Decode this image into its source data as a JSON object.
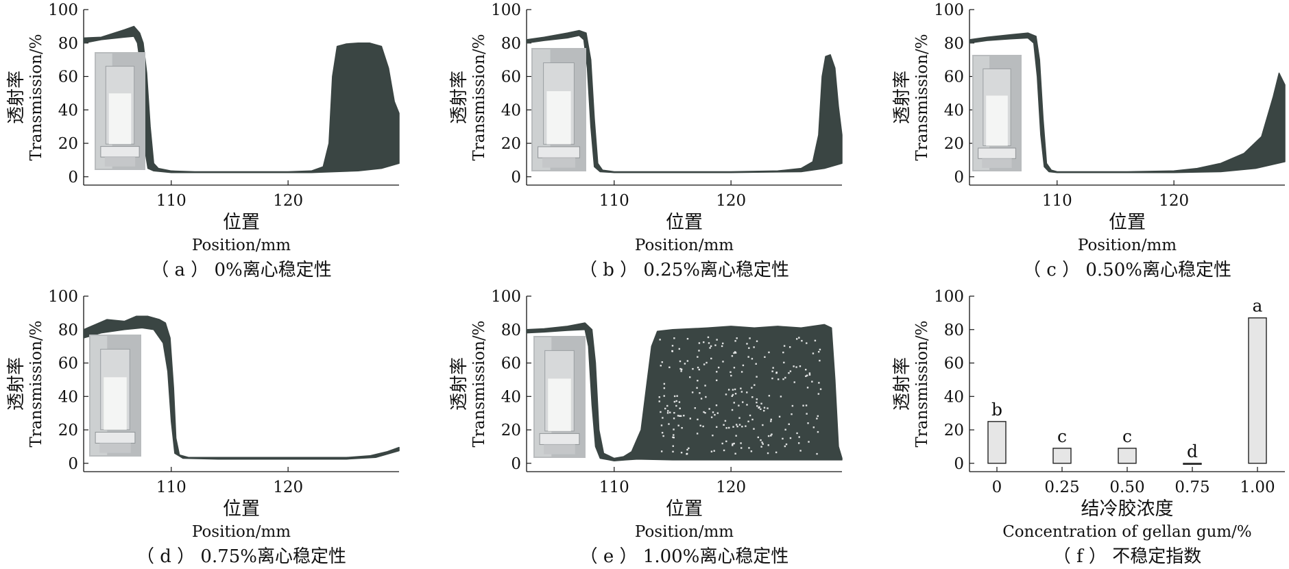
{
  "chart_data": [
    {
      "id": "a",
      "type": "area",
      "caption": "（ a ） 0%离心稳定性",
      "ylabel_cn": "透射率",
      "ylabel_en": "Transmission/%",
      "xlabel_cn": "位置",
      "xlabel_en": "Position/mm",
      "xlim": [
        102.5,
        129.5
      ],
      "ylim": [
        -5,
        100
      ],
      "xticks": [
        "110",
        "120"
      ],
      "yticks": [
        "0",
        "20",
        "40",
        "60",
        "80",
        "100"
      ],
      "color": "#3a4543",
      "upper": [
        [
          102.5,
          83
        ],
        [
          104,
          83.5
        ],
        [
          106,
          88
        ],
        [
          106.8,
          90
        ],
        [
          107.3,
          86
        ],
        [
          107.6,
          80
        ],
        [
          107.9,
          62
        ],
        [
          108.2,
          30
        ],
        [
          108.5,
          8
        ],
        [
          108.9,
          5
        ],
        [
          110,
          3.5
        ],
        [
          112,
          3
        ],
        [
          120,
          3
        ],
        [
          122,
          3.5
        ],
        [
          123,
          6
        ],
        [
          123.5,
          20
        ],
        [
          123.8,
          60
        ],
        [
          124.2,
          78
        ],
        [
          125,
          79.5
        ],
        [
          126,
          80
        ],
        [
          127,
          80
        ],
        [
          128,
          78
        ],
        [
          128.6,
          65
        ],
        [
          129.1,
          45
        ],
        [
          129.5,
          38
        ]
      ],
      "lower": [
        [
          102.5,
          80
        ],
        [
          104,
          82
        ],
        [
          106,
          83.5
        ],
        [
          106.8,
          84
        ],
        [
          107.1,
          80
        ],
        [
          107.3,
          70
        ],
        [
          107.5,
          45
        ],
        [
          107.7,
          18
        ],
        [
          108,
          5
        ],
        [
          108.5,
          3.5
        ],
        [
          110,
          2.5
        ],
        [
          120,
          2.5
        ],
        [
          122,
          2.5
        ],
        [
          124,
          3
        ],
        [
          126,
          3.5
        ],
        [
          128,
          5
        ],
        [
          129.5,
          8
        ]
      ]
    },
    {
      "id": "b",
      "type": "area",
      "caption": "（ b ） 0.25%离心稳定性",
      "ylabel_cn": "透射率",
      "ylabel_en": "Transmission/%",
      "xlabel_cn": "位置",
      "xlabel_en": "Position/mm",
      "xlim": [
        102.5,
        129.5
      ],
      "ylim": [
        -5,
        100
      ],
      "xticks": [
        "110",
        "120"
      ],
      "yticks": [
        "0",
        "20",
        "40",
        "60",
        "80",
        "100"
      ],
      "color": "#3a4543",
      "upper": [
        [
          102.5,
          82
        ],
        [
          104,
          83.5
        ],
        [
          106,
          86
        ],
        [
          107,
          87.5
        ],
        [
          107.6,
          86
        ],
        [
          108,
          70
        ],
        [
          108.3,
          35
        ],
        [
          108.6,
          8
        ],
        [
          109,
          4
        ],
        [
          110,
          3
        ],
        [
          120,
          3
        ],
        [
          124,
          3.5
        ],
        [
          126,
          5
        ],
        [
          127,
          9
        ],
        [
          127.5,
          25
        ],
        [
          127.8,
          60
        ],
        [
          128.1,
          72
        ],
        [
          128.5,
          73
        ],
        [
          128.9,
          65
        ],
        [
          129.2,
          42
        ],
        [
          129.5,
          25
        ]
      ],
      "lower": [
        [
          102.5,
          80
        ],
        [
          104,
          81.5
        ],
        [
          106,
          83
        ],
        [
          107,
          84.5
        ],
        [
          107.4,
          82
        ],
        [
          107.7,
          65
        ],
        [
          108,
          30
        ],
        [
          108.3,
          6
        ],
        [
          108.8,
          3
        ],
        [
          110,
          2.5
        ],
        [
          120,
          2.5
        ],
        [
          126,
          3
        ],
        [
          128,
          5
        ],
        [
          129.5,
          8
        ]
      ]
    },
    {
      "id": "c",
      "type": "area",
      "caption": "（ c ） 0.50%离心稳定性",
      "ylabel_cn": "透射率",
      "ylabel_en": "Transmission/%",
      "xlabel_cn": "位置",
      "xlabel_en": "Position/mm",
      "xlim": [
        102.5,
        129.5
      ],
      "ylim": [
        -5,
        100
      ],
      "xticks": [
        "110",
        "120"
      ],
      "yticks": [
        "0",
        "20",
        "40",
        "60",
        "80",
        "100"
      ],
      "color": "#3a4543",
      "upper": [
        [
          102.5,
          82
        ],
        [
          104,
          83.5
        ],
        [
          106,
          85
        ],
        [
          107.5,
          86
        ],
        [
          108.2,
          84
        ],
        [
          108.5,
          70
        ],
        [
          108.8,
          35
        ],
        [
          109.1,
          8
        ],
        [
          109.5,
          4
        ],
        [
          110,
          3
        ],
        [
          116,
          3
        ],
        [
          120,
          3.5
        ],
        [
          122,
          5
        ],
        [
          124,
          8
        ],
        [
          126,
          14
        ],
        [
          127.5,
          24
        ],
        [
          128.5,
          48
        ],
        [
          129,
          62
        ],
        [
          129.5,
          55
        ]
      ],
      "lower": [
        [
          102.5,
          80
        ],
        [
          104,
          81.5
        ],
        [
          106,
          82.5
        ],
        [
          107.5,
          83
        ],
        [
          108,
          80
        ],
        [
          108.3,
          60
        ],
        [
          108.6,
          25
        ],
        [
          108.9,
          6
        ],
        [
          109.3,
          3
        ],
        [
          110,
          2.5
        ],
        [
          120,
          2.5
        ],
        [
          124,
          3
        ],
        [
          127,
          5
        ],
        [
          129.5,
          9
        ]
      ]
    },
    {
      "id": "d",
      "type": "area",
      "caption": "（ d ） 0.75%离心稳定性",
      "ylabel_cn": "透射率",
      "ylabel_en": "Transmission/%",
      "xlabel_cn": "位置",
      "xlabel_en": "Position/mm",
      "xlim": [
        102.5,
        129.5
      ],
      "ylim": [
        -5,
        100
      ],
      "xticks": [
        "110",
        "120"
      ],
      "yticks": [
        "0",
        "20",
        "40",
        "60",
        "80",
        "100"
      ],
      "color": "#3a4543",
      "upper": [
        [
          102.5,
          80
        ],
        [
          103.5,
          83
        ],
        [
          104.5,
          86
        ],
        [
          106,
          85
        ],
        [
          107,
          88
        ],
        [
          108,
          88
        ],
        [
          109,
          86
        ],
        [
          109.5,
          84
        ],
        [
          109.9,
          75
        ],
        [
          110.2,
          45
        ],
        [
          110.4,
          15
        ],
        [
          110.7,
          5
        ],
        [
          111.5,
          3.5
        ],
        [
          114,
          3.5
        ],
        [
          120,
          3.5
        ],
        [
          125,
          3.5
        ],
        [
          127,
          4.5
        ],
        [
          128.5,
          7
        ],
        [
          129.5,
          9.5
        ]
      ],
      "lower": [
        [
          102.5,
          75
        ],
        [
          104,
          78
        ],
        [
          106,
          80
        ],
        [
          107.5,
          81
        ],
        [
          108.5,
          80
        ],
        [
          109.3,
          72
        ],
        [
          109.7,
          55
        ],
        [
          110,
          25
        ],
        [
          110.3,
          6
        ],
        [
          111,
          3
        ],
        [
          114,
          2.5
        ],
        [
          125,
          2.5
        ],
        [
          127.5,
          3.5
        ],
        [
          129.5,
          7.5
        ]
      ]
    },
    {
      "id": "e",
      "type": "area",
      "caption": "（ e ） 1.00%离心稳定性",
      "ylabel_cn": "透射率",
      "ylabel_en": "Transmission/%",
      "xlabel_cn": "位置",
      "xlabel_en": "Position/mm",
      "xlim": [
        102.5,
        129.5
      ],
      "ylim": [
        -5,
        100
      ],
      "xticks": [
        "110",
        "120"
      ],
      "yticks": [
        "0",
        "20",
        "40",
        "60",
        "80",
        "100"
      ],
      "color": "#3a4543",
      "upper": [
        [
          102.5,
          80
        ],
        [
          104,
          80.5
        ],
        [
          106,
          82
        ],
        [
          107.5,
          84
        ],
        [
          108.1,
          80
        ],
        [
          108.4,
          60
        ],
        [
          108.7,
          20
        ],
        [
          109.1,
          6
        ],
        [
          110,
          3
        ],
        [
          110.8,
          4
        ],
        [
          111.5,
          7
        ],
        [
          112.3,
          20
        ],
        [
          112.8,
          48
        ],
        [
          113.2,
          70
        ],
        [
          113.7,
          79
        ],
        [
          115,
          80
        ],
        [
          118,
          81
        ],
        [
          120,
          82
        ],
        [
          122,
          81
        ],
        [
          124,
          82
        ],
        [
          126,
          81
        ],
        [
          128,
          83
        ],
        [
          128.6,
          81
        ],
        [
          128.9,
          50
        ],
        [
          129.2,
          10
        ],
        [
          129.5,
          3
        ]
      ],
      "lower": [
        [
          102.5,
          78
        ],
        [
          104,
          78.5
        ],
        [
          106,
          79.5
        ],
        [
          107.5,
          80
        ],
        [
          107.8,
          70
        ],
        [
          108.1,
          35
        ],
        [
          108.4,
          10
        ],
        [
          108.8,
          3
        ],
        [
          110,
          1.5
        ],
        [
          111,
          2
        ],
        [
          112,
          2.5
        ],
        [
          115,
          2
        ],
        [
          120,
          2
        ],
        [
          125,
          2
        ],
        [
          128,
          2
        ],
        [
          129.5,
          2
        ]
      ]
    },
    {
      "id": "f",
      "type": "bar",
      "caption": "（ f ） 不稳定指数",
      "ylabel_cn": "透射率",
      "ylabel_en": "Transmission/%",
      "xlabel_cn": "结冷胶浓度",
      "xlabel_en": "Concentration of gellan gum/%",
      "ylim": [
        -5,
        100
      ],
      "yticks": [
        "0",
        "20",
        "40",
        "60",
        "80",
        "100"
      ],
      "categories": [
        "0",
        "0.25",
        "0.50",
        "0.75",
        "1.00"
      ],
      "values": [
        25,
        9,
        9,
        -0.5,
        87
      ],
      "labels": [
        "b",
        "c",
        "c",
        "d",
        "a"
      ],
      "bar_fill": "#e6e6e6",
      "bar_stroke": "#222222"
    }
  ]
}
